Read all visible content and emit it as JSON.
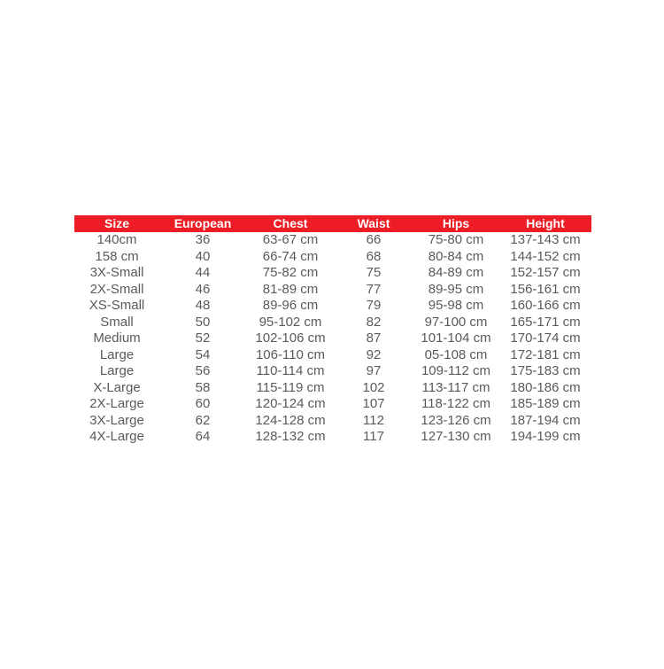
{
  "colors": {
    "header_bg": "#ee1c25",
    "header_text": "#ffffff",
    "cell_text": "#5a5a5a"
  },
  "table": {
    "headers": [
      "Size",
      "European",
      "Chest",
      "Waist",
      "Hips",
      "Height"
    ],
    "rows": [
      [
        "140cm",
        "36",
        "63-67 cm",
        "66",
        "75-80 cm",
        "137-143 cm"
      ],
      [
        "158 cm",
        "40",
        "66-74 cm",
        "68",
        "80-84 cm",
        "144-152 cm"
      ],
      [
        "3X-Small",
        "44",
        "75-82 cm",
        "75",
        "84-89 cm",
        "152-157 cm"
      ],
      [
        "2X-Small",
        "46",
        "81-89 cm",
        "77",
        "89-95 cm",
        "156-161 cm"
      ],
      [
        "XS-Small",
        "48",
        "89-96 cm",
        "79",
        "95-98 cm",
        "160-166 cm"
      ],
      [
        "Small",
        "50",
        "95-102 cm",
        "82",
        "97-100 cm",
        "165-171 cm"
      ],
      [
        "Medium",
        "52",
        "102-106 cm",
        "87",
        "101-104 cm",
        "170-174 cm"
      ],
      [
        "Large",
        "54",
        "106-110 cm",
        "92",
        "05-108 cm",
        "172-181 cm"
      ],
      [
        "Large",
        "56",
        "110-114 cm",
        "97",
        "109-112 cm",
        "175-183 cm"
      ],
      [
        "X-Large",
        "58",
        "115-119 cm",
        "102",
        "113-117 cm",
        "180-186 cm"
      ],
      [
        "2X-Large",
        "60",
        "120-124 cm",
        "107",
        "118-122 cm",
        "185-189 cm"
      ],
      [
        "3X-Large",
        "62",
        "124-128 cm",
        "112",
        "123-126 cm",
        "187-194 cm"
      ],
      [
        "4X-Large",
        "64",
        "128-132 cm",
        "117",
        "127-130 cm",
        "194-199 cm"
      ]
    ]
  }
}
